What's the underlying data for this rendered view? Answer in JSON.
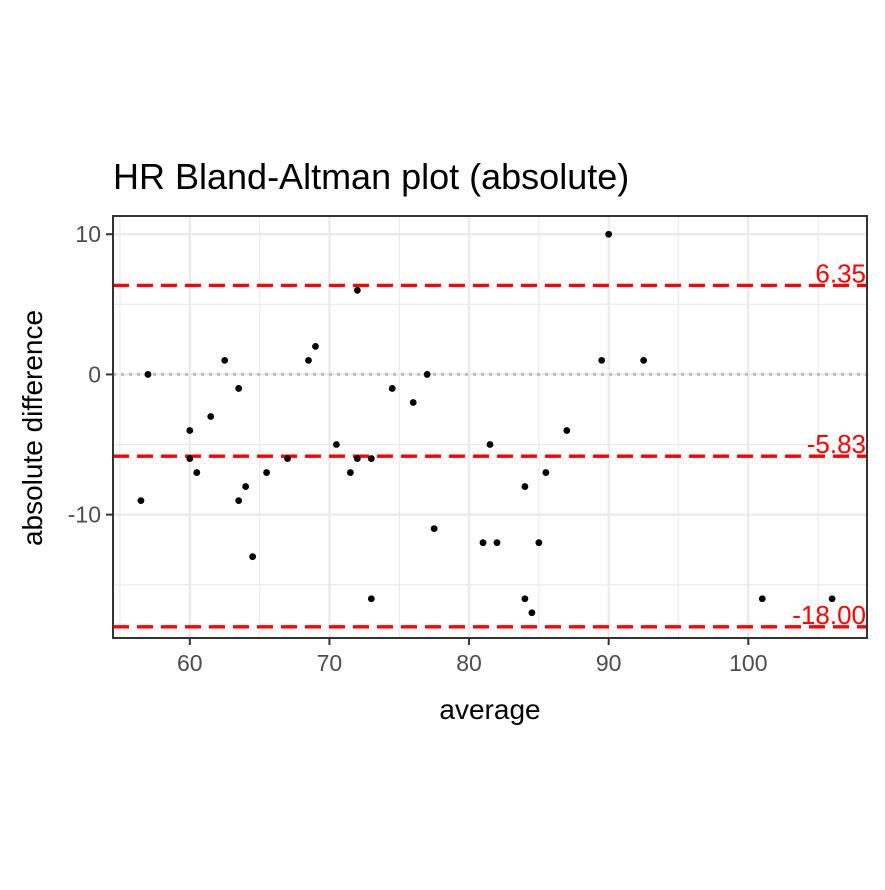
{
  "chart_data": {
    "type": "scatter",
    "title": "HR   Bland-Altman plot (absolute)",
    "xlabel": "average",
    "ylabel": "absolute difference",
    "xlim": [
      54.5,
      108.5
    ],
    "ylim": [
      -18.8,
      11.3
    ],
    "x_ticks": [
      60,
      70,
      80,
      90,
      100
    ],
    "x_tick_labels": [
      "60",
      "70",
      "80",
      "90",
      "100"
    ],
    "y_ticks": [
      10,
      0,
      -10
    ],
    "y_tick_labels": [
      "10",
      "0",
      "-10"
    ],
    "grid": true,
    "legend": "none",
    "colors": {
      "points": "#000000",
      "limits": "#ff0000",
      "zero_line": "#bebebe",
      "grid": "#ebebeb",
      "panel_border": "#333333"
    },
    "zero_line": 0,
    "reference_lines": [
      {
        "name": "upper limit of agreement",
        "y": 6.35,
        "label": "6.35"
      },
      {
        "name": "mean difference",
        "y": -5.83,
        "label": "-5.83"
      },
      {
        "name": "lower limit of agreement",
        "y": -18.0,
        "label": "-18.00"
      }
    ],
    "points": [
      {
        "x": 56.5,
        "y": -9
      },
      {
        "x": 57,
        "y": 0
      },
      {
        "x": 60,
        "y": -4
      },
      {
        "x": 60,
        "y": -6
      },
      {
        "x": 60.5,
        "y": -7
      },
      {
        "x": 61.5,
        "y": -3
      },
      {
        "x": 62.5,
        "y": 1
      },
      {
        "x": 63.5,
        "y": -1
      },
      {
        "x": 63.5,
        "y": -9
      },
      {
        "x": 64,
        "y": -8
      },
      {
        "x": 64.5,
        "y": -13
      },
      {
        "x": 65.5,
        "y": -7
      },
      {
        "x": 67,
        "y": -6
      },
      {
        "x": 68.5,
        "y": 1
      },
      {
        "x": 69,
        "y": 2
      },
      {
        "x": 70.5,
        "y": -5
      },
      {
        "x": 71.5,
        "y": -7
      },
      {
        "x": 72,
        "y": 6
      },
      {
        "x": 72,
        "y": -6
      },
      {
        "x": 73,
        "y": -6
      },
      {
        "x": 73,
        "y": -16
      },
      {
        "x": 74.5,
        "y": -1
      },
      {
        "x": 76,
        "y": -2
      },
      {
        "x": 77,
        "y": 0
      },
      {
        "x": 77.5,
        "y": -11
      },
      {
        "x": 81,
        "y": -12
      },
      {
        "x": 81.5,
        "y": -5
      },
      {
        "x": 82,
        "y": -12
      },
      {
        "x": 84,
        "y": -8
      },
      {
        "x": 84,
        "y": -16
      },
      {
        "x": 84.5,
        "y": -17
      },
      {
        "x": 85,
        "y": -12
      },
      {
        "x": 85.5,
        "y": -7
      },
      {
        "x": 87,
        "y": -4
      },
      {
        "x": 89.5,
        "y": 1
      },
      {
        "x": 90,
        "y": 10
      },
      {
        "x": 92.5,
        "y": 1
      },
      {
        "x": 101,
        "y": -16
      },
      {
        "x": 106,
        "y": -16
      }
    ]
  }
}
